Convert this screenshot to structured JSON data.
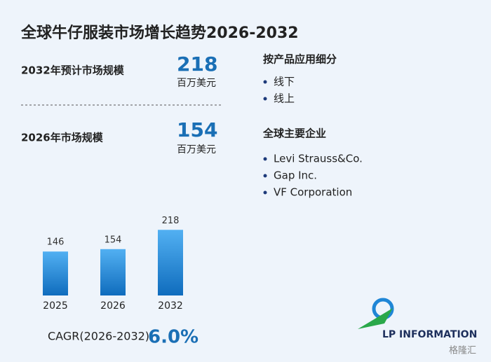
{
  "title": "全球牛仔服装市场增长趋势2026-2032",
  "market_2032": {
    "label": "2032年预计市场规模",
    "value": 218,
    "unit": "百万美元"
  },
  "market_2026": {
    "label": "2026年市场规模",
    "value": 154,
    "unit": "百万美元"
  },
  "segments": {
    "heading": "按产品应用细分",
    "items": [
      "线下",
      "线上"
    ]
  },
  "companies": {
    "heading": "全球主要企业",
    "items": [
      "Levi Strauss&Co.",
      "Gap Inc.",
      "VF Corporation"
    ]
  },
  "cagr": {
    "label": "CAGR(2026-2032)",
    "value": "6.0%"
  },
  "logo": "LP INFORMATION",
  "watermark": "格隆汇",
  "chart_data": {
    "type": "bar",
    "categories": [
      "2025",
      "2026",
      "2032"
    ],
    "values": [
      146,
      154,
      218
    ],
    "color": "#1f86d6"
  }
}
